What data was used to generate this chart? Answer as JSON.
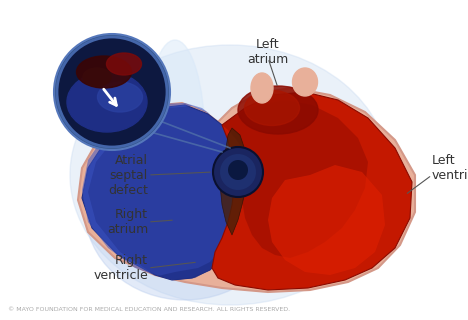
{
  "bg_color": "#ffffff",
  "figsize": [
    4.68,
    3.2
  ],
  "dpi": 100,
  "text_color": "#333333",
  "copyright_color": "#aaaaaa",
  "copyright": "© MAYO FOUNDATION FOR MEDICAL EDUCATION AND RESEARCH. ALL RIGHTS RESERVED.",
  "labels": {
    "left_atrium": "Left\natrium",
    "left_ventricle": "Left\nventricle",
    "atrial_septal_defect": "Atrial\nseptal\ndefect",
    "right_atrium": "Right\natrium",
    "right_ventricle": "Right\nventricle"
  },
  "colors": {
    "bg_glow": "#c5d8f0",
    "heart_outer": "#e8b09a",
    "heart_edge": "#d49888",
    "right_blue_dark": "#1e2e85",
    "right_blue_mid": "#2a3da0",
    "right_blue_light": "#3a52c0",
    "left_red_dark": "#8b0a00",
    "left_red_mid": "#c41800",
    "left_red_bright": "#e02000",
    "septum_dark": "#3a1a08",
    "asd_circle": "#1a2560",
    "zoom_bg": "#0d1840",
    "zoom_edge": "#2244aa",
    "zoom_red": "#6a0808",
    "zoom_dark_red": "#3a0505",
    "arrow_line": "#888888",
    "white": "#ffffff"
  }
}
